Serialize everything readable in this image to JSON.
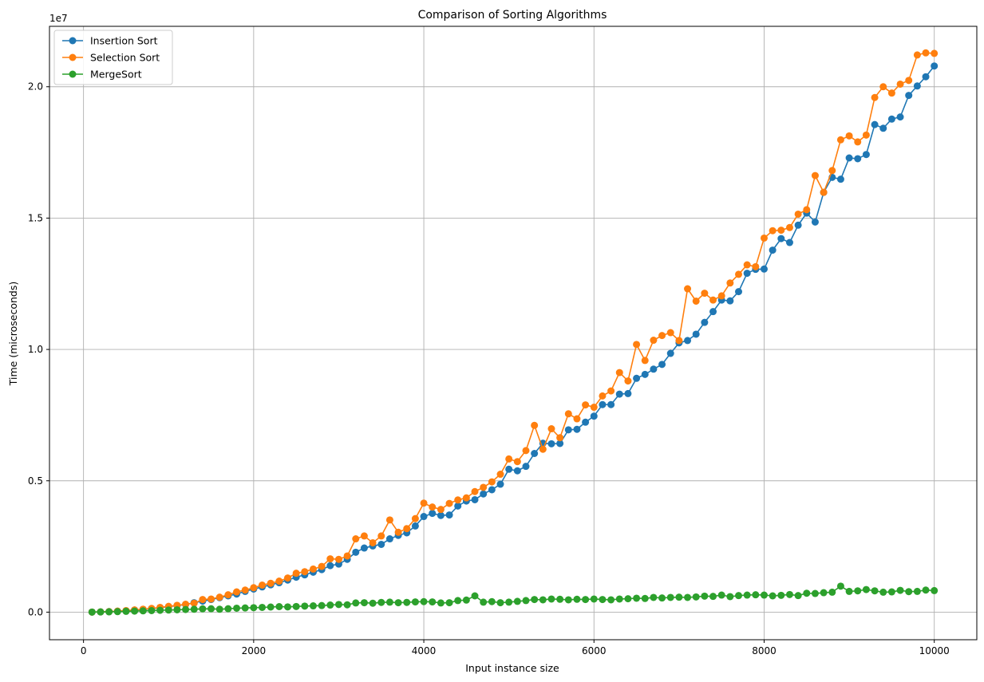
{
  "chart_data": {
    "type": "line",
    "title": "Comparison of Sorting Algorithms",
    "xlabel": "Input instance size",
    "ylabel": "Time (microseconds)",
    "y_offset_label": "1e7",
    "xlim": [
      -400,
      10500
    ],
    "ylim": [
      -1050000,
      22300000
    ],
    "x_ticks": [
      0,
      2000,
      4000,
      6000,
      8000,
      10000
    ],
    "x_tick_labels": [
      "0",
      "2000",
      "4000",
      "6000",
      "8000",
      "10000"
    ],
    "y_ticks": [
      0,
      5000000,
      10000000,
      15000000,
      20000000
    ],
    "y_tick_labels": [
      "0.0",
      "0.5",
      "1.0",
      "1.5",
      "2.0"
    ],
    "grid": true,
    "legend_position": "top-left",
    "x": [
      100,
      200,
      300,
      400,
      500,
      600,
      700,
      800,
      900,
      1000,
      1100,
      1200,
      1300,
      1400,
      1500,
      1600,
      1700,
      1800,
      1900,
      2000,
      2100,
      2200,
      2300,
      2400,
      2500,
      2600,
      2700,
      2800,
      2900,
      3000,
      3100,
      3200,
      3300,
      3400,
      3500,
      3600,
      3700,
      3800,
      3900,
      4000,
      4100,
      4200,
      4300,
      4400,
      4500,
      4600,
      4700,
      4800,
      4900,
      5000,
      5100,
      5200,
      5300,
      5400,
      5500,
      5600,
      5700,
      5800,
      5900,
      6000,
      6100,
      6200,
      6300,
      6400,
      6500,
      6600,
      6700,
      6800,
      6900,
      7000,
      7100,
      7200,
      7300,
      7400,
      7500,
      7600,
      7700,
      7800,
      7900,
      8000,
      8100,
      8200,
      8300,
      8400,
      8500,
      8600,
      8700,
      8800,
      8900,
      9000,
      9100,
      9200,
      9300,
      9400,
      9500,
      9600,
      9700,
      9800,
      9900,
      10000
    ],
    "series": [
      {
        "name": "Insertion Sort",
        "color": "#1f77b4",
        "values": [
          2000,
          9000,
          20000,
          35000,
          55000,
          80000,
          105000,
          135000,
          170000,
          210000,
          250000,
          290000,
          360000,
          420000,
          480000,
          550000,
          620000,
          690000,
          790000,
          880000,
          960000,
          1040000,
          1120000,
          1220000,
          1330000,
          1420000,
          1520000,
          1620000,
          1770000,
          1830000,
          2010000,
          2280000,
          2440000,
          2520000,
          2580000,
          2790000,
          2920000,
          3020000,
          3280000,
          3640000,
          3760000,
          3680000,
          3700000,
          4040000,
          4230000,
          4280000,
          4500000,
          4660000,
          4870000,
          5440000,
          5380000,
          5550000,
          6040000,
          6430000,
          6410000,
          6420000,
          6940000,
          6960000,
          7230000,
          7460000,
          7900000,
          7900000,
          8300000,
          8320000,
          8900000,
          9050000,
          9250000,
          9430000,
          9850000,
          10250000,
          10340000,
          10580000,
          11030000,
          11440000,
          11880000,
          11850000,
          12200000,
          12900000,
          13050000,
          13060000,
          13780000,
          14220000,
          14070000,
          14730000,
          15190000,
          14850000,
          15980000,
          16550000,
          16480000,
          17290000,
          17260000,
          17420000,
          18560000,
          18420000,
          18770000,
          18850000,
          19670000,
          20030000,
          20380000,
          20790000
        ]
      },
      {
        "name": "Selection Sort",
        "color": "#ff7f0e",
        "values": [
          3000,
          10000,
          22000,
          38000,
          60000,
          85000,
          112000,
          140000,
          180000,
          220000,
          260000,
          300000,
          340000,
          480000,
          500000,
          570000,
          660000,
          770000,
          840000,
          930000,
          1030000,
          1100000,
          1180000,
          1300000,
          1480000,
          1540000,
          1640000,
          1740000,
          2030000,
          2010000,
          2140000,
          2790000,
          2900000,
          2640000,
          2900000,
          3510000,
          3040000,
          3180000,
          3560000,
          4150000,
          4000000,
          3910000,
          4140000,
          4270000,
          4350000,
          4590000,
          4750000,
          4960000,
          5250000,
          5830000,
          5730000,
          6150000,
          7110000,
          6200000,
          6980000,
          6640000,
          7550000,
          7360000,
          7890000,
          7800000,
          8230000,
          8420000,
          9120000,
          8800000,
          10190000,
          9580000,
          10350000,
          10530000,
          10640000,
          10340000,
          12310000,
          11840000,
          12140000,
          11880000,
          12040000,
          12530000,
          12860000,
          13220000,
          13150000,
          14240000,
          14520000,
          14540000,
          14640000,
          15150000,
          15320000,
          16620000,
          15980000,
          16810000,
          17980000,
          18130000,
          17900000,
          18160000,
          19590000,
          20000000,
          19760000,
          20100000,
          20240000,
          21210000,
          21290000,
          21270000
        ]
      },
      {
        "name": "MergeSort",
        "color": "#2ca02c",
        "values": [
          2000,
          8000,
          12000,
          20000,
          30000,
          40000,
          50000,
          60000,
          70000,
          80000,
          90000,
          100000,
          110000,
          125000,
          130000,
          110000,
          130000,
          150000,
          160000,
          170000,
          180000,
          195000,
          210000,
          200000,
          215000,
          230000,
          240000,
          250000,
          270000,
          290000,
          280000,
          350000,
          360000,
          340000,
          370000,
          380000,
          360000,
          370000,
          390000,
          400000,
          390000,
          350000,
          360000,
          440000,
          460000,
          620000,
          380000,
          400000,
          360000,
          380000,
          410000,
          440000,
          480000,
          470000,
          500000,
          490000,
          470000,
          490000,
          480000,
          500000,
          480000,
          470000,
          500000,
          510000,
          530000,
          520000,
          560000,
          540000,
          560000,
          570000,
          560000,
          580000,
          610000,
          600000,
          650000,
          590000,
          630000,
          650000,
          660000,
          650000,
          620000,
          640000,
          670000,
          630000,
          720000,
          710000,
          740000,
          760000,
          990000,
          790000,
          810000,
          860000,
          810000,
          760000,
          770000,
          830000,
          780000,
          790000,
          840000,
          820000
        ]
      }
    ]
  }
}
